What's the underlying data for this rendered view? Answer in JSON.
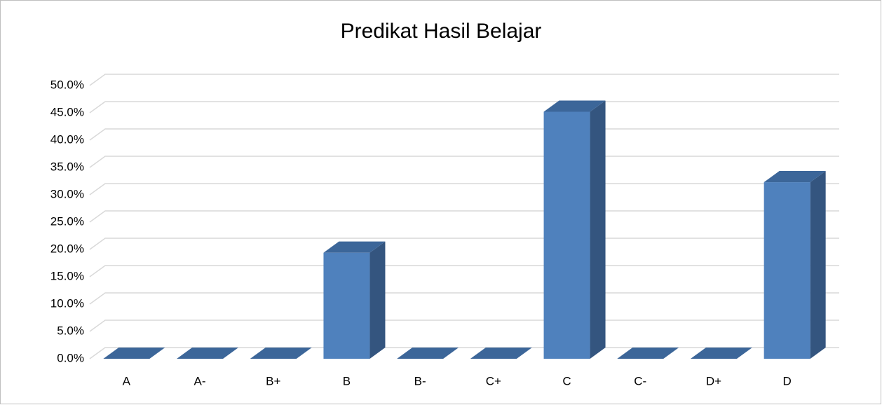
{
  "chart_data": {
    "type": "bar3d",
    "title": "Predikat Hasil Belajar",
    "categories": [
      "A",
      "A-",
      "B+",
      "B",
      "B-",
      "C+",
      "C",
      "C-",
      "D+",
      "D"
    ],
    "values": [
      0,
      0,
      0,
      19.4,
      0,
      0,
      45.2,
      0,
      0,
      32.3
    ],
    "color": "#4f81bd",
    "ylim": [
      0,
      50
    ],
    "yticks": [
      {
        "value": 0,
        "label": "0.0%"
      },
      {
        "value": 5,
        "label": "5.0%"
      },
      {
        "value": 10,
        "label": "10.0%"
      },
      {
        "value": 15,
        "label": "15.0%"
      },
      {
        "value": 20,
        "label": "20.0%"
      },
      {
        "value": 25,
        "label": "25.0%"
      },
      {
        "value": 30,
        "label": "30.0%"
      },
      {
        "value": 35,
        "label": "35.0%"
      },
      {
        "value": 40,
        "label": "40.0%"
      },
      {
        "value": 45,
        "label": "45.0%"
      },
      {
        "value": 50,
        "label": "50.0%"
      }
    ],
    "grid": true
  }
}
